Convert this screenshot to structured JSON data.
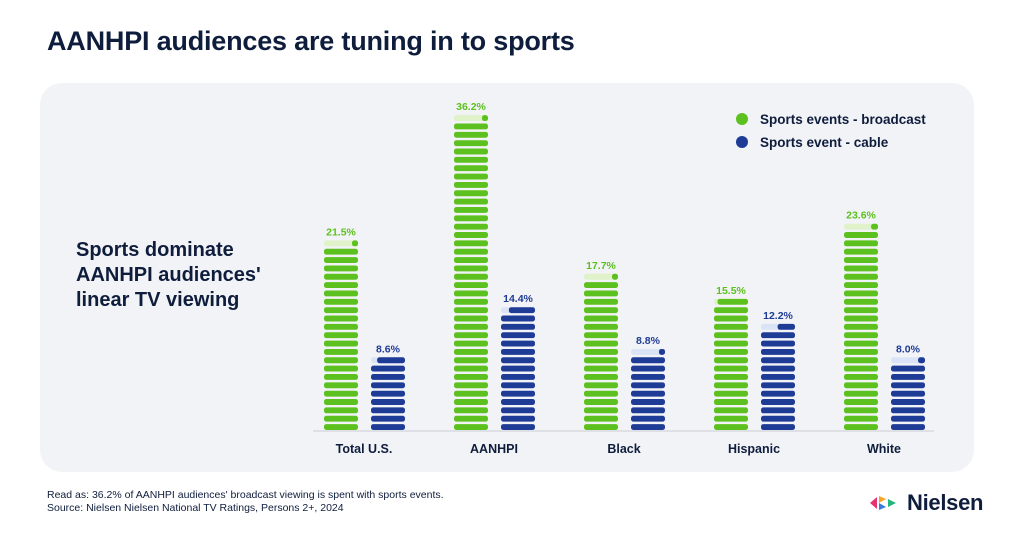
{
  "page": {
    "title": "AANHPI audiences are tuning in to sports",
    "subtitle": "Sports dominate AANHPI audiences' linear TV viewing",
    "note_read_as": "Read as: 36.2% of AANHPI audiences' broadcast viewing is spent with sports events.",
    "note_source": "Source: Nielsen Nielsen National TV Ratings, Persons 2+, 2024",
    "brand": "Nielsen"
  },
  "colors": {
    "broadcast": "#5cc11e",
    "broadcast_light": "#dff2c9",
    "cable": "#1e3b96",
    "cable_light": "#dbe4f6",
    "text_dark": "#0f1d3d",
    "panel": "#f2f3f6"
  },
  "chart_data": {
    "type": "bar",
    "categories": [
      "Total U.S.",
      "AANHPI",
      "Black",
      "Hispanic",
      "White"
    ],
    "series": [
      {
        "name": "Sports events - broadcast",
        "values": [
          21.5,
          36.2,
          17.7,
          15.5,
          23.6
        ],
        "labels": [
          "21.5%",
          "36.2%",
          "17.7%",
          "15.5%",
          "23.6%"
        ]
      },
      {
        "name": "Sports event - cable",
        "values": [
          8.6,
          14.4,
          8.8,
          12.2,
          8.0
        ],
        "labels": [
          "8.6%",
          "14.4%",
          "8.8%",
          "12.2%",
          "8.0%"
        ]
      }
    ],
    "ylim": [
      0,
      36.2
    ],
    "legend_position": "top-right",
    "grid": false
  }
}
